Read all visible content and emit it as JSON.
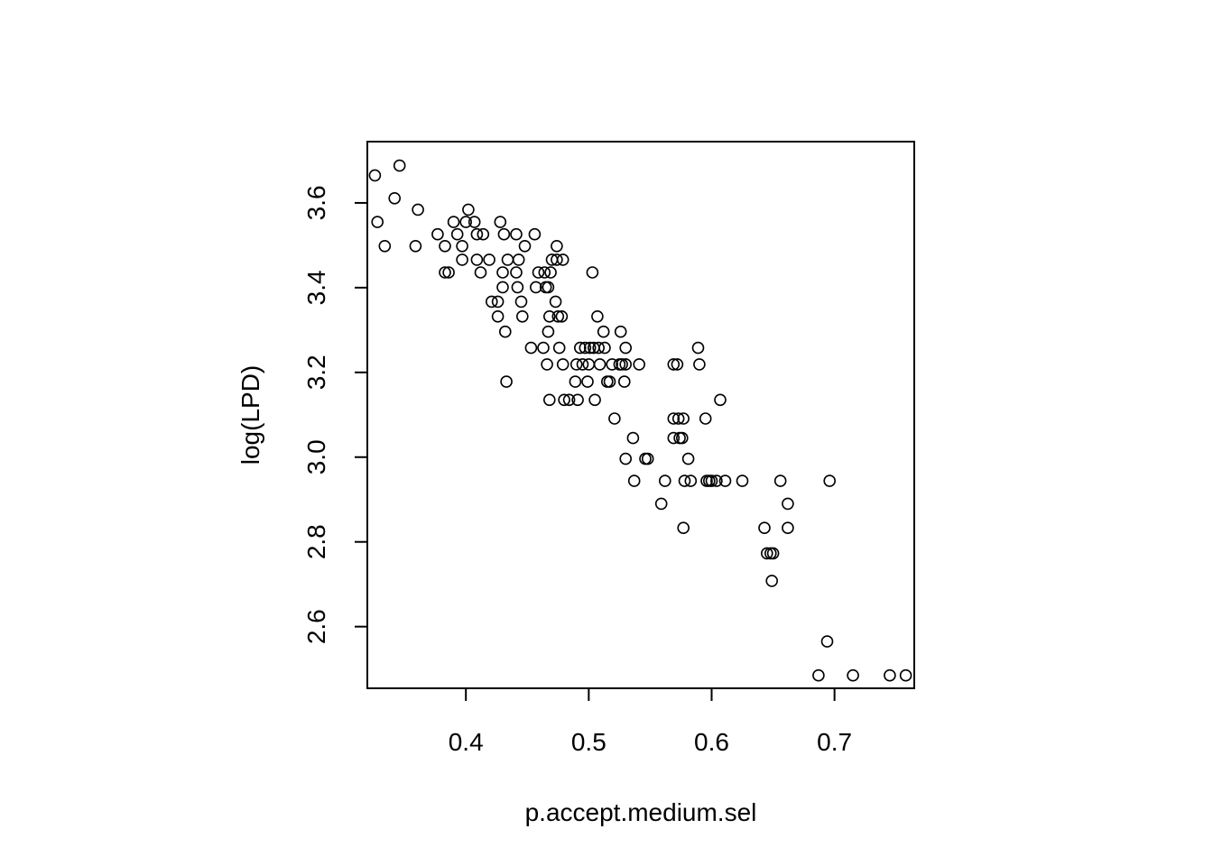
{
  "chart_data": {
    "type": "scatter",
    "title": "",
    "xlabel": "p.accept.medium.sel",
    "ylabel": "log(LPD)",
    "xlim": [
      0.3198,
      0.7649
    ],
    "ylim": [
      2.4545,
      3.7446
    ],
    "x_ticks": [
      0.4,
      0.5,
      0.6,
      0.7
    ],
    "x_tick_labels": [
      "0.4",
      "0.5",
      "0.6",
      "0.7"
    ],
    "y_ticks": [
      2.6,
      2.8,
      3.0,
      3.2,
      3.4,
      3.6
    ],
    "y_tick_labels": [
      "2.6",
      "2.8",
      "3.0",
      "3.2",
      "3.4",
      "3.6"
    ],
    "marker": "open-circle",
    "marker_color": "#000000",
    "grid": false,
    "legend": "none",
    "points": [
      [
        0.326,
        3.665
      ],
      [
        0.328,
        3.555
      ],
      [
        0.334,
        3.498
      ],
      [
        0.342,
        3.611
      ],
      [
        0.346,
        3.688
      ],
      [
        0.359,
        3.498
      ],
      [
        0.361,
        3.584
      ],
      [
        0.377,
        3.526
      ],
      [
        0.383,
        3.498
      ],
      [
        0.383,
        3.436
      ],
      [
        0.386,
        3.436
      ],
      [
        0.39,
        3.555
      ],
      [
        0.393,
        3.526
      ],
      [
        0.397,
        3.498
      ],
      [
        0.397,
        3.466
      ],
      [
        0.4,
        3.555
      ],
      [
        0.402,
        3.584
      ],
      [
        0.407,
        3.555
      ],
      [
        0.409,
        3.526
      ],
      [
        0.409,
        3.466
      ],
      [
        0.412,
        3.436
      ],
      [
        0.414,
        3.526
      ],
      [
        0.419,
        3.466
      ],
      [
        0.421,
        3.367
      ],
      [
        0.426,
        3.367
      ],
      [
        0.426,
        3.332
      ],
      [
        0.428,
        3.555
      ],
      [
        0.43,
        3.436
      ],
      [
        0.43,
        3.401
      ],
      [
        0.431,
        3.526
      ],
      [
        0.432,
        3.296
      ],
      [
        0.433,
        3.178
      ],
      [
        0.434,
        3.466
      ],
      [
        0.441,
        3.526
      ],
      [
        0.441,
        3.436
      ],
      [
        0.442,
        3.401
      ],
      [
        0.443,
        3.466
      ],
      [
        0.445,
        3.367
      ],
      [
        0.446,
        3.332
      ],
      [
        0.448,
        3.498
      ],
      [
        0.453,
        3.258
      ],
      [
        0.456,
        3.526
      ],
      [
        0.457,
        3.401
      ],
      [
        0.459,
        3.436
      ],
      [
        0.463,
        3.258
      ],
      [
        0.464,
        3.436
      ],
      [
        0.465,
        3.401
      ],
      [
        0.466,
        3.219
      ],
      [
        0.467,
        3.401
      ],
      [
        0.467,
        3.296
      ],
      [
        0.468,
        3.332
      ],
      [
        0.468,
        3.135
      ],
      [
        0.469,
        3.436
      ],
      [
        0.47,
        3.466
      ],
      [
        0.473,
        3.367
      ],
      [
        0.474,
        3.498
      ],
      [
        0.474,
        3.466
      ],
      [
        0.475,
        3.332
      ],
      [
        0.476,
        3.258
      ],
      [
        0.478,
        3.332
      ],
      [
        0.479,
        3.466
      ],
      [
        0.479,
        3.219
      ],
      [
        0.48,
        3.135
      ],
      [
        0.484,
        3.135
      ],
      [
        0.489,
        3.178
      ],
      [
        0.49,
        3.219
      ],
      [
        0.491,
        3.135
      ],
      [
        0.493,
        3.258
      ],
      [
        0.495,
        3.219
      ],
      [
        0.497,
        3.258
      ],
      [
        0.499,
        3.178
      ],
      [
        0.5,
        3.219
      ],
      [
        0.501,
        3.258
      ],
      [
        0.503,
        3.436
      ],
      [
        0.504,
        3.258
      ],
      [
        0.505,
        3.135
      ],
      [
        0.507,
        3.332
      ],
      [
        0.508,
        3.258
      ],
      [
        0.509,
        3.219
      ],
      [
        0.512,
        3.296
      ],
      [
        0.513,
        3.258
      ],
      [
        0.515,
        3.178
      ],
      [
        0.517,
        3.178
      ],
      [
        0.519,
        3.219
      ],
      [
        0.521,
        3.091
      ],
      [
        0.525,
        3.219
      ],
      [
        0.526,
        3.296
      ],
      [
        0.527,
        3.219
      ],
      [
        0.529,
        3.178
      ],
      [
        0.53,
        3.258
      ],
      [
        0.53,
        3.219
      ],
      [
        0.53,
        2.996
      ],
      [
        0.536,
        3.045
      ],
      [
        0.537,
        2.944
      ],
      [
        0.541,
        3.219
      ],
      [
        0.546,
        2.996
      ],
      [
        0.548,
        2.996
      ],
      [
        0.559,
        2.89
      ],
      [
        0.562,
        2.944
      ],
      [
        0.569,
        3.219
      ],
      [
        0.569,
        3.091
      ],
      [
        0.569,
        3.045
      ],
      [
        0.572,
        3.219
      ],
      [
        0.573,
        3.091
      ],
      [
        0.574,
        3.045
      ],
      [
        0.576,
        3.045
      ],
      [
        0.577,
        3.091
      ],
      [
        0.577,
        2.833
      ],
      [
        0.578,
        2.944
      ],
      [
        0.581,
        2.996
      ],
      [
        0.583,
        2.944
      ],
      [
        0.589,
        3.258
      ],
      [
        0.59,
        3.219
      ],
      [
        0.595,
        3.091
      ],
      [
        0.596,
        2.944
      ],
      [
        0.598,
        2.944
      ],
      [
        0.6,
        2.944
      ],
      [
        0.604,
        2.944
      ],
      [
        0.607,
        3.135
      ],
      [
        0.611,
        2.944
      ],
      [
        0.625,
        2.944
      ],
      [
        0.643,
        2.833
      ],
      [
        0.645,
        2.773
      ],
      [
        0.648,
        2.773
      ],
      [
        0.649,
        2.708
      ],
      [
        0.65,
        2.773
      ],
      [
        0.656,
        2.944
      ],
      [
        0.662,
        2.89
      ],
      [
        0.662,
        2.833
      ],
      [
        0.687,
        2.485
      ],
      [
        0.694,
        2.565
      ],
      [
        0.696,
        2.944
      ],
      [
        0.715,
        2.485
      ],
      [
        0.745,
        2.485
      ],
      [
        0.758,
        2.485
      ]
    ]
  }
}
